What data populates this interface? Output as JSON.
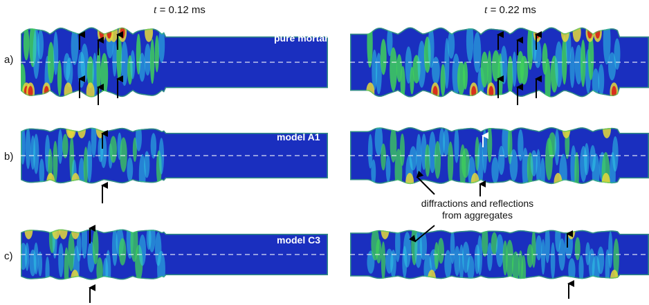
{
  "columns": [
    {
      "t_symbol": "t",
      "t_value": " = 0.12 ms"
    },
    {
      "t_symbol": "t",
      "t_value": " = 0.22 ms"
    }
  ],
  "rows": [
    {
      "label": "a)",
      "model": "pure mortar"
    },
    {
      "label": "b)",
      "model": "model A1"
    },
    {
      "label": "c)",
      "model": "model C3"
    }
  ],
  "annotation": {
    "line1": "diffractions and reflections",
    "line2": "from aggregates"
  },
  "colors": {
    "background": "#1a2fbf",
    "cyan": "#2fc8e6",
    "green": "#3fd05a",
    "yellow": "#e6d83a",
    "red": "#d8301c"
  }
}
